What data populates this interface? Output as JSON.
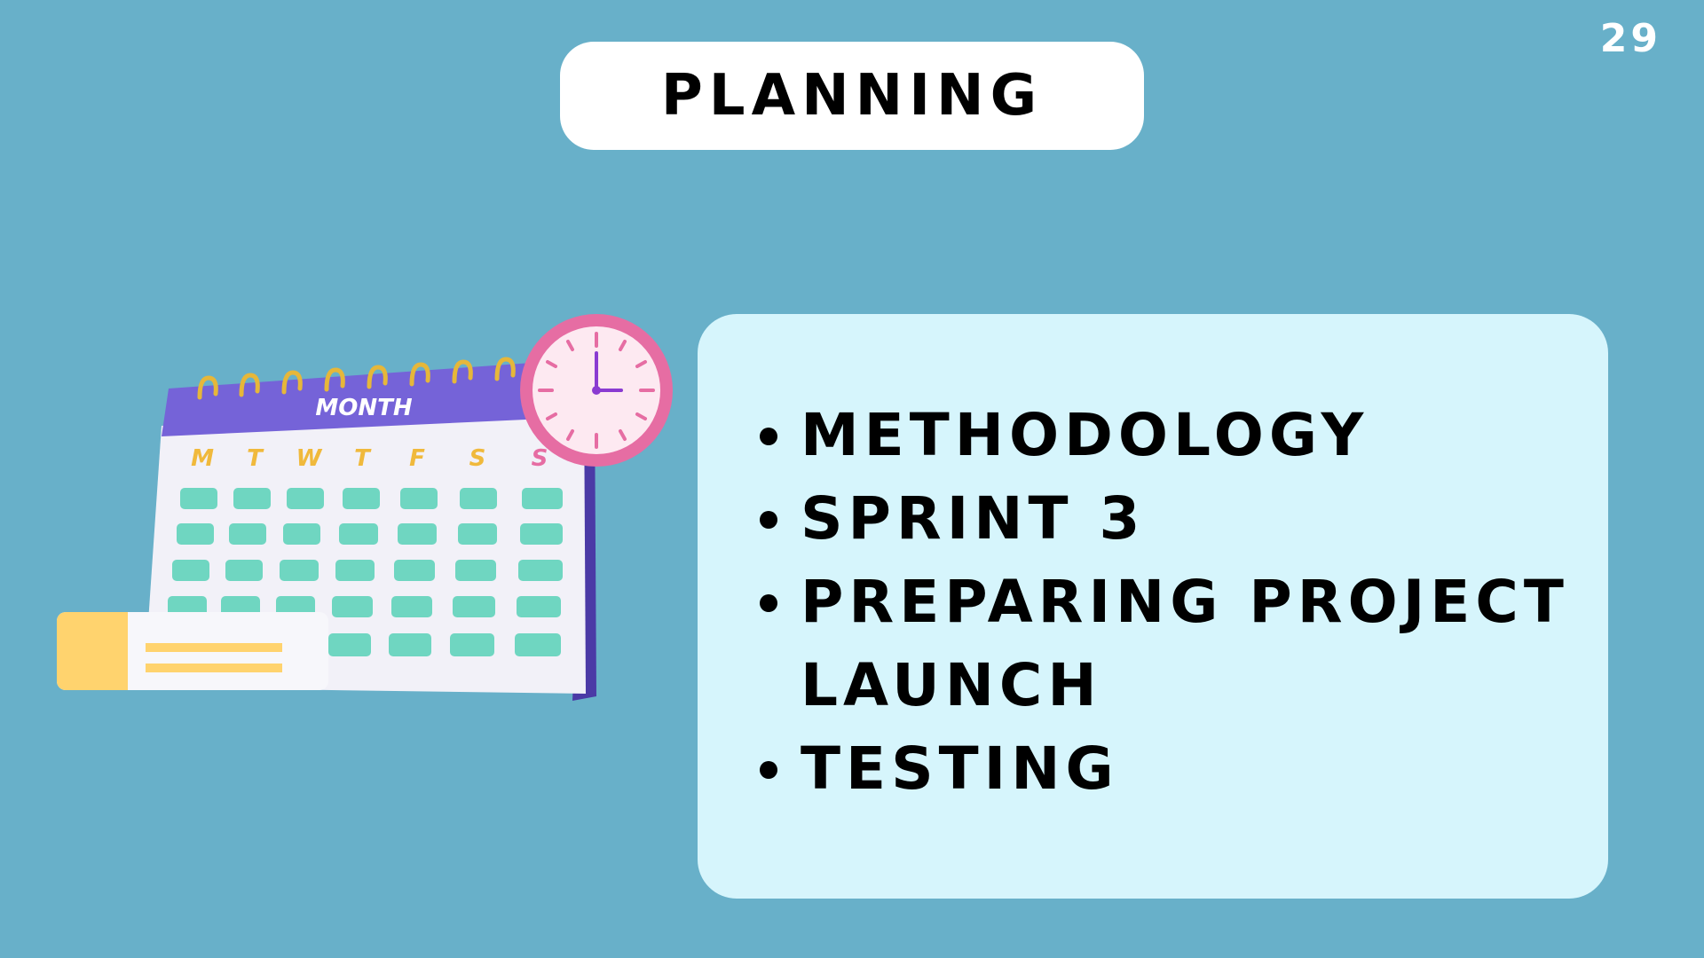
{
  "slide": {
    "page_number": "29",
    "title": "PLANNING"
  },
  "illustration": {
    "calendar_header": "MONTH",
    "weekdays": [
      "M",
      "T",
      "W",
      "T",
      "F",
      "S",
      "S"
    ],
    "icons": [
      "calendar-icon",
      "clock-icon",
      "note-card-icon"
    ]
  },
  "bullets": [
    "METHODOLOGY",
    "SPRINT 3",
    "PREPARING PROJECT LAUNCH",
    "TESTING"
  ],
  "colors": {
    "background": "#68b0c9",
    "title_pill": "#ffffff",
    "card": "#d6f5fc",
    "text": "#000000",
    "calendar_header": "#7563d8",
    "calendar_cell": "#6fd6c1",
    "calendar_ring": "#e6b73a",
    "clock_rim": "#e66da3",
    "clock_face": "#fde9f1",
    "note_accent": "#ffd36e"
  }
}
